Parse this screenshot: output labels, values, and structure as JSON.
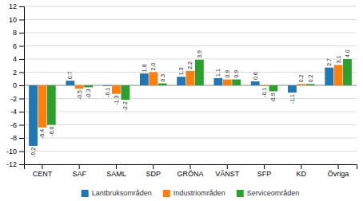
{
  "chart_data": {
    "type": "bar",
    "categories": [
      "CENT",
      "SAF",
      "SAML",
      "SDP",
      "GRÖNA",
      "VÄNST",
      "SFP",
      "KD",
      "Övriga"
    ],
    "series": [
      {
        "name": "Lantbruksområden",
        "values": [
          -9.2,
          0.7,
          -0.1,
          1.8,
          1.3,
          1.1,
          0.6,
          -1.1,
          2.7
        ]
      },
      {
        "name": "Industriområden",
        "values": [
          -6.4,
          -0.5,
          -1.3,
          2.0,
          2.2,
          0.9,
          -0.1,
          0.2,
          3.1
        ],
        "value_labels": [
          "-6.4",
          "-0.5",
          "-1.3",
          "2.0",
          "2.2",
          "0.9",
          "-0.1",
          "0.2",
          "3.1"
        ]
      },
      {
        "name": "Serviceområden",
        "values": [
          -6.0,
          -0.3,
          -2.2,
          0.3,
          3.9,
          0.9,
          -0.9,
          0.2,
          4.0
        ],
        "value_labels": [
          "-6.0",
          "-0.3",
          "-2.2",
          "0.3",
          "3.9",
          "0.9",
          "-0.9",
          "0.2",
          "4.0"
        ]
      }
    ],
    "ylim": [
      -12,
      12
    ],
    "yticks": [
      -12,
      -10,
      -8,
      -6,
      -4,
      -2,
      0,
      2,
      4,
      6,
      8,
      10,
      12
    ],
    "grid": true,
    "data_labels": true,
    "legend": "bottom"
  }
}
